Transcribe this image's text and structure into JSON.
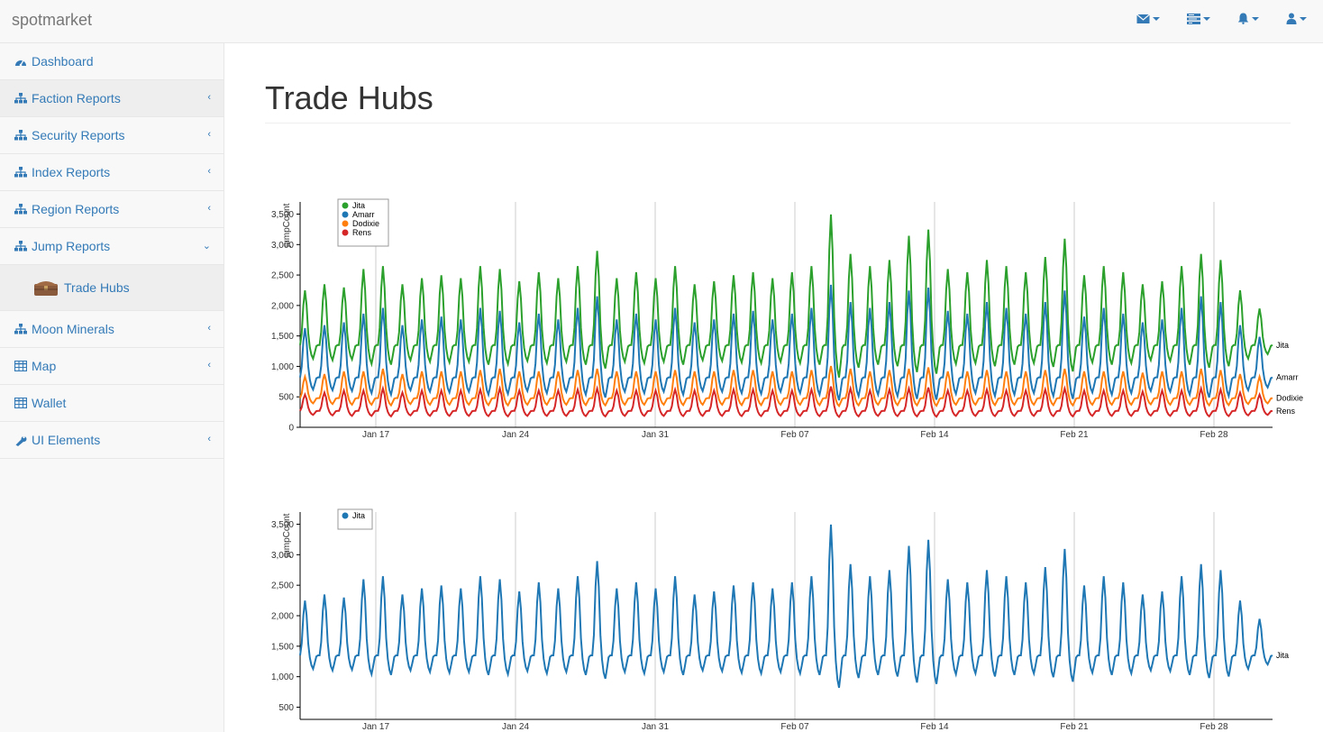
{
  "app": {
    "brand": "spotmarket"
  },
  "topnav": [
    {
      "icon": "envelope-icon"
    },
    {
      "icon": "tasks-icon"
    },
    {
      "icon": "bell-icon"
    },
    {
      "icon": "user-icon"
    }
  ],
  "sidebar": {
    "items": [
      {
        "label": "Dashboard",
        "icon": "dashboard-icon",
        "arrow": ""
      },
      {
        "label": "Faction Reports",
        "icon": "sitemap-icon",
        "arrow": "‹"
      },
      {
        "label": "Security Reports",
        "icon": "sitemap-icon",
        "arrow": "‹"
      },
      {
        "label": "Index Reports",
        "icon": "sitemap-icon",
        "arrow": "‹"
      },
      {
        "label": "Region Reports",
        "icon": "sitemap-icon",
        "arrow": "‹"
      },
      {
        "label": "Jump Reports",
        "icon": "sitemap-icon",
        "arrow": "⌄"
      },
      {
        "label": "Moon Minerals",
        "icon": "sitemap-icon",
        "arrow": "‹"
      },
      {
        "label": "Map",
        "icon": "table-icon",
        "arrow": "‹"
      },
      {
        "label": "Wallet",
        "icon": "table-icon",
        "arrow": ""
      },
      {
        "label": "UI Elements",
        "icon": "wrench-icon",
        "arrow": "‹"
      }
    ],
    "subitem": {
      "label": "Trade Hubs",
      "icon": "chest-icon"
    }
  },
  "page": {
    "title": "Trade Hubs"
  },
  "chart_data": [
    {
      "type": "line",
      "ylabel": "jumpCount",
      "ylim": [
        0,
        3700
      ],
      "yticks": [
        0,
        500,
        1000,
        1500,
        2000,
        2500,
        3000,
        3500
      ],
      "ytick_labels": [
        "0",
        "500",
        "1,000",
        "1,500",
        "2,000",
        "2,500",
        "3,000",
        "3,500"
      ],
      "xticks": [
        "Jan 17",
        "Jan 24",
        "Jan 31",
        "Feb 07",
        "Feb 14",
        "Feb 21",
        "Feb 28"
      ],
      "legend": "top-left",
      "series": [
        {
          "name": "Jita",
          "color": "#2ca02c",
          "base": 1350,
          "amp": 1050,
          "variation": [
            0.9,
            1.0,
            0.95,
            1.25,
            1.3,
            1.0,
            1.1,
            1.15,
            1.1,
            1.3,
            1.25,
            1.05,
            1.2,
            1.1,
            1.3,
            1.55,
            1.1,
            1.2,
            1.1,
            1.3,
            1.0,
            1.05,
            1.15,
            1.2,
            1.1,
            1.2,
            1.3,
            2.15,
            1.5,
            1.3,
            1.4,
            1.8,
            1.9,
            1.25,
            1.2,
            1.4,
            1.3,
            1.2,
            1.45,
            1.75,
            1.15,
            1.3,
            1.2,
            1.0,
            1.05,
            1.3,
            1.5,
            1.4,
            0.9,
            0.6
          ],
          "end_label": "Jita"
        },
        {
          "name": "Amarr",
          "color": "#1f77b4",
          "base": 820,
          "amp": 1000,
          "variation": [
            0.85,
            0.9,
            0.95,
            1.1,
            1.2,
            0.9,
            1.0,
            1.05,
            1.0,
            1.2,
            1.15,
            0.95,
            1.1,
            1.0,
            1.2,
            1.4,
            1.0,
            1.1,
            1.0,
            1.2,
            0.95,
            1.0,
            1.1,
            1.15,
            1.0,
            1.1,
            1.2,
            1.6,
            1.3,
            1.2,
            1.3,
            1.5,
            1.55,
            1.15,
            1.1,
            1.3,
            1.2,
            1.1,
            1.3,
            1.5,
            1.05,
            1.2,
            1.1,
            0.95,
            1.0,
            1.2,
            1.4,
            1.3,
            0.9,
            0.7
          ],
          "end_label": "Amarr"
        },
        {
          "name": "Dodixie",
          "color": "#ff7f0e",
          "base": 480,
          "amp": 460,
          "variation": [
            0.8,
            0.9,
            1.0,
            1.0,
            1.1,
            0.9,
            1.0,
            1.0,
            1.0,
            1.05,
            1.1,
            1.0,
            1.0,
            1.0,
            1.05,
            1.1,
            1.0,
            1.0,
            1.0,
            1.05,
            1.0,
            1.0,
            1.05,
            1.05,
            1.0,
            1.0,
            1.05,
            1.2,
            1.1,
            1.0,
            1.05,
            1.1,
            1.15,
            1.0,
            1.0,
            1.05,
            1.0,
            1.0,
            1.05,
            1.1,
            1.0,
            1.0,
            1.0,
            0.95,
            1.0,
            1.0,
            1.1,
            1.05,
            0.9,
            0.8
          ],
          "end_label": "Dodixie"
        },
        {
          "name": "Rens",
          "color": "#d62728",
          "base": 270,
          "amp": 350,
          "variation": [
            0.8,
            0.9,
            1.0,
            1.0,
            1.1,
            0.9,
            1.0,
            1.0,
            1.0,
            1.05,
            1.1,
            1.0,
            1.0,
            1.0,
            1.05,
            1.1,
            1.0,
            1.0,
            1.0,
            1.05,
            1.0,
            1.0,
            1.05,
            1.05,
            1.0,
            1.0,
            1.05,
            1.2,
            1.1,
            1.0,
            1.05,
            1.1,
            1.15,
            1.0,
            1.0,
            1.05,
            1.0,
            1.0,
            1.05,
            1.1,
            1.0,
            1.0,
            1.0,
            0.95,
            1.0,
            1.0,
            1.1,
            1.05,
            0.9,
            0.8
          ],
          "end_label": "Rens"
        }
      ]
    },
    {
      "type": "line",
      "ylabel": "jumpCount",
      "ylim": [
        300,
        3700
      ],
      "yticks": [
        500,
        1000,
        1500,
        2000,
        2500,
        3000,
        3500
      ],
      "ytick_labels": [
        "500",
        "1,000",
        "1,500",
        "2,000",
        "2,500",
        "3,000",
        "3,500"
      ],
      "xticks": [
        "Jan 17",
        "Jan 24",
        "Jan 31",
        "Feb 07",
        "Feb 14",
        "Feb 21",
        "Feb 28"
      ],
      "legend": "top-left",
      "series": [
        {
          "name": "Jita",
          "color": "#1f77b4",
          "base": 1350,
          "amp": 1050,
          "variation": [
            0.9,
            1.0,
            0.95,
            1.25,
            1.3,
            1.0,
            1.1,
            1.15,
            1.1,
            1.3,
            1.25,
            1.05,
            1.2,
            1.1,
            1.3,
            1.55,
            1.1,
            1.2,
            1.1,
            1.3,
            1.0,
            1.05,
            1.15,
            1.2,
            1.1,
            1.2,
            1.3,
            2.15,
            1.5,
            1.3,
            1.4,
            1.8,
            1.9,
            1.25,
            1.2,
            1.4,
            1.3,
            1.2,
            1.45,
            1.75,
            1.15,
            1.3,
            1.2,
            1.0,
            1.05,
            1.3,
            1.5,
            1.4,
            0.9,
            0.6
          ],
          "end_label": "Jita"
        }
      ]
    }
  ]
}
